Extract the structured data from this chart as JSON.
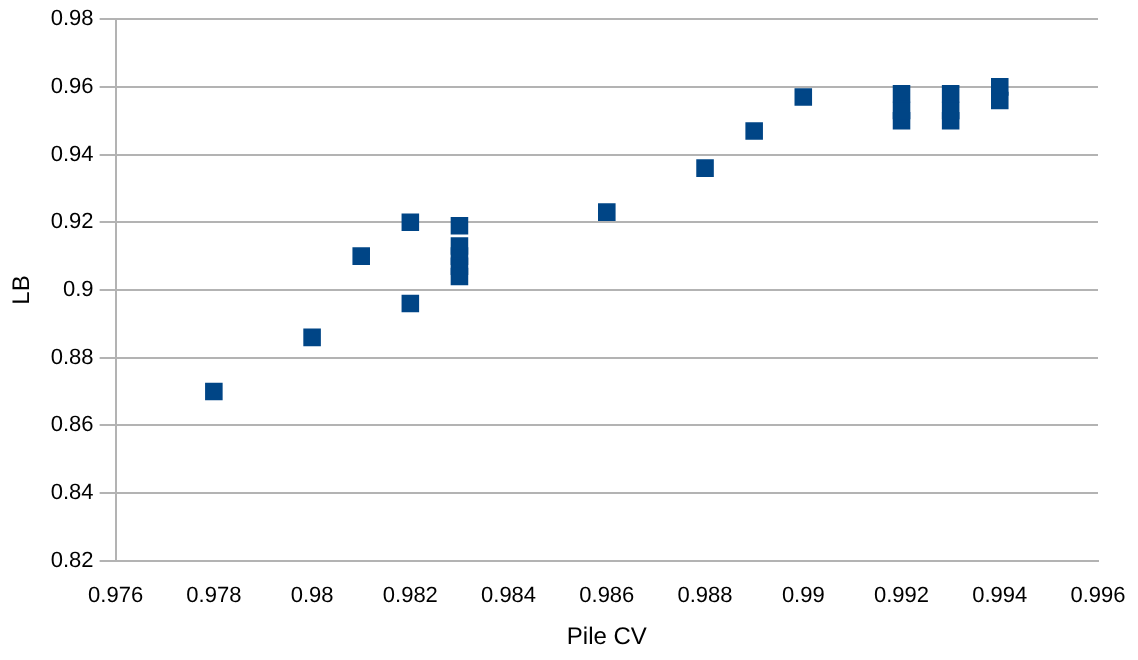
{
  "chart_data": {
    "type": "scatter",
    "xlabel": "Pile CV",
    "ylabel": "LB",
    "x": [
      0.978,
      0.98,
      0.981,
      0.982,
      0.982,
      0.983,
      0.983,
      0.983,
      0.983,
      0.983,
      0.986,
      0.988,
      0.989,
      0.99,
      0.992,
      0.992,
      0.992,
      0.993,
      0.993,
      0.993,
      0.994,
      0.994
    ],
    "series": [
      {
        "color": "#004586",
        "values": [
          0.87,
          0.886,
          0.91,
          0.92,
          0.896,
          0.919,
          0.913,
          0.91,
          0.907,
          0.904,
          0.923,
          0.936,
          0.947,
          0.957,
          0.95,
          0.953,
          0.958,
          0.95,
          0.953,
          0.958,
          0.956,
          0.96
        ]
      }
    ],
    "xlim": [
      0.976,
      0.996
    ],
    "xticks": [
      0.976,
      0.978,
      0.98,
      0.982,
      0.984,
      0.986,
      0.988,
      0.99,
      0.992,
      0.994,
      0.996
    ],
    "ylim": [
      0.82,
      0.98
    ],
    "yticks": [
      0.82,
      0.84,
      0.86,
      0.88,
      0.9,
      0.92,
      0.94,
      0.96,
      0.98
    ],
    "grid": "y",
    "legend": false,
    "marker": "square"
  }
}
